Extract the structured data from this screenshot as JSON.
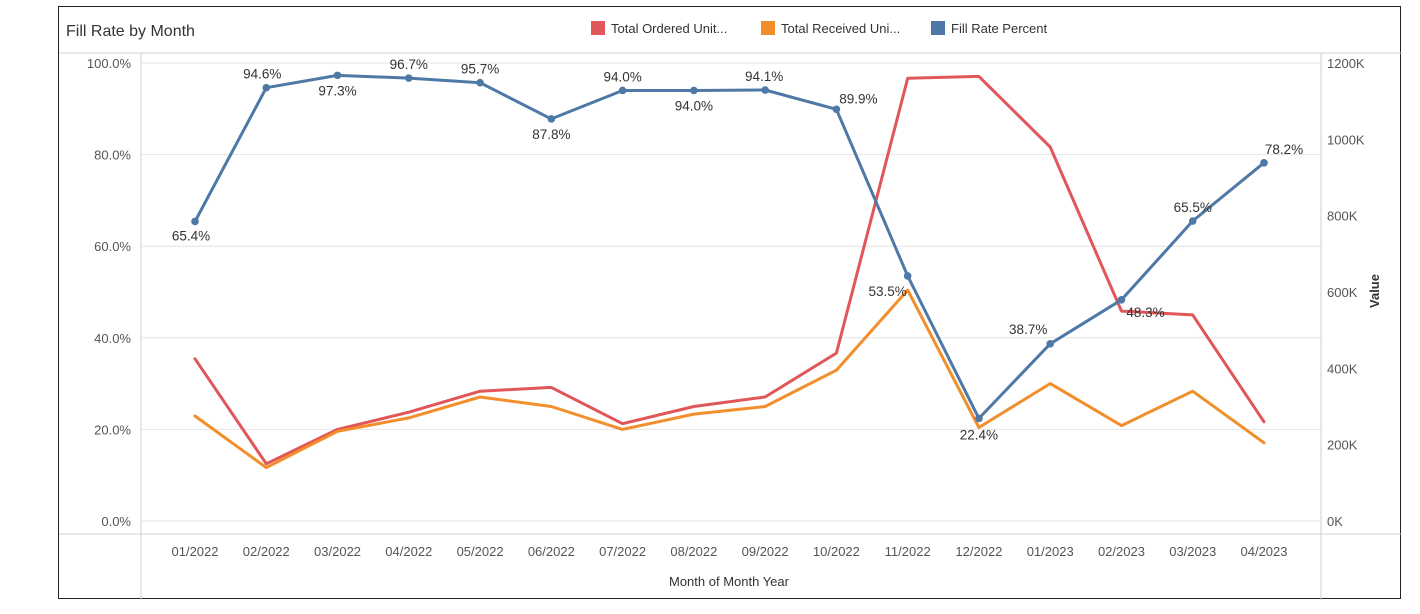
{
  "chart_data": {
    "type": "line",
    "title": "Fill Rate by Month",
    "xlabel": "Month of Month Year",
    "ylabel_left": "",
    "ylabel_right": "Value",
    "categories": [
      "01/2022",
      "02/2022",
      "03/2022",
      "04/2022",
      "05/2022",
      "06/2022",
      "07/2022",
      "08/2022",
      "09/2022",
      "10/2022",
      "11/2022",
      "12/2022",
      "01/2023",
      "02/2023",
      "03/2023",
      "04/2023"
    ],
    "left_axis": {
      "ylim": [
        0,
        100
      ],
      "ticks": [
        "0.0%",
        "20.0%",
        "40.0%",
        "60.0%",
        "80.0%",
        "100.0%"
      ]
    },
    "right_axis": {
      "ylim": [
        0,
        1200000
      ],
      "ticks": [
        "0K",
        "200K",
        "400K",
        "600K",
        "800K",
        "1000K",
        "1200K"
      ]
    },
    "legend": [
      {
        "name": "Total Ordered Unit...",
        "color": "#e15759"
      },
      {
        "name": "Total Received Uni...",
        "color": "#f28e2b"
      },
      {
        "name": "Fill Rate Percent",
        "color": "#4e79a7"
      }
    ],
    "series": [
      {
        "name": "Total Ordered Units",
        "axis": "right",
        "color": "#e15759",
        "values": [
          425000,
          150000,
          240000,
          285000,
          340000,
          350000,
          255000,
          300000,
          325000,
          440000,
          1160000,
          1165000,
          980000,
          550000,
          540000,
          260000
        ]
      },
      {
        "name": "Total Received Units",
        "axis": "right",
        "color": "#f28e2b",
        "values": [
          275000,
          140000,
          235000,
          270000,
          325000,
          300000,
          240000,
          280000,
          300000,
          395000,
          605000,
          245000,
          360000,
          250000,
          340000,
          205000
        ]
      },
      {
        "name": "Fill Rate Percent",
        "axis": "left",
        "color": "#4e79a7",
        "values": [
          65.4,
          94.6,
          97.3,
          96.7,
          95.7,
          87.8,
          94.0,
          94.0,
          94.1,
          89.9,
          53.5,
          22.4,
          38.7,
          48.3,
          65.5,
          78.2
        ],
        "labels": [
          "65.4%",
          "94.6%",
          "97.3%",
          "96.7%",
          "95.7%",
          "87.8%",
          "94.0%",
          "94.0%",
          "94.1%",
          "89.9%",
          "53.5%",
          "22.4%",
          "38.7%",
          "48.3%",
          "65.5%",
          "78.2%"
        ]
      }
    ],
    "grid": true,
    "legend_position": "top-right"
  }
}
